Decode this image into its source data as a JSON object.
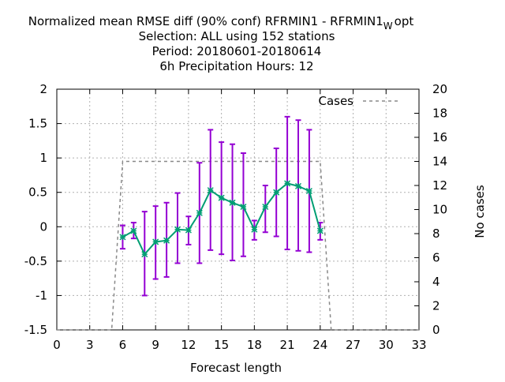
{
  "chart_data": {
    "type": "line",
    "title_lines": [
      "Normalized mean RMSE diff (90% conf) RFRMIN1 - RFRMIN1",
      "Selection: ALL using   152 stations",
      "Period: 20180601-20180614",
      "6h Precipitation   Hours:  12"
    ],
    "title_subscript": "W",
    "title_suffix": "opt",
    "xlabel": "Forecast length",
    "ylabel_right": "No cases",
    "xlim": [
      0,
      33
    ],
    "ylim": [
      -1.5,
      2
    ],
    "y2lim": [
      0,
      20
    ],
    "x_ticks": [
      "0",
      "3",
      "6",
      "9",
      "12",
      "15",
      "18",
      "21",
      "24",
      "27",
      "30",
      "33"
    ],
    "y_ticks": [
      "-1.5",
      "-1",
      "-0.5",
      "0",
      "0.5",
      "1",
      "1.5",
      "2"
    ],
    "y2_ticks": [
      "0",
      "2",
      "4",
      "6",
      "8",
      "10",
      "12",
      "14",
      "16",
      "18",
      "20"
    ],
    "grid": true,
    "legend_position": "top-right",
    "legend_label": "Cases",
    "series": [
      {
        "name": "RMSE diff",
        "color": "#009e73",
        "errorbar_color": "#9400d3",
        "x": [
          6,
          7,
          8,
          9,
          10,
          11,
          12,
          13,
          14,
          15,
          16,
          17,
          18,
          19,
          20,
          21,
          22,
          23,
          24
        ],
        "y": [
          -0.15,
          -0.06,
          -0.4,
          -0.22,
          -0.2,
          -0.04,
          -0.05,
          0.2,
          0.53,
          0.42,
          0.35,
          0.29,
          -0.04,
          0.29,
          0.5,
          0.63,
          0.59,
          0.52,
          -0.06
        ],
        "y_low": [
          -0.32,
          -0.17,
          -1.0,
          -0.76,
          -0.73,
          -0.53,
          -0.26,
          -0.53,
          -0.34,
          -0.4,
          -0.49,
          -0.43,
          -0.19,
          -0.08,
          -0.14,
          -0.33,
          -0.35,
          -0.37,
          -0.19
        ],
        "y_high": [
          0.02,
          0.06,
          0.22,
          0.3,
          0.35,
          0.49,
          0.15,
          0.93,
          1.41,
          1.23,
          1.2,
          1.07,
          0.09,
          0.6,
          1.14,
          1.6,
          1.55,
          1.41,
          0.06
        ]
      },
      {
        "name": "Cases",
        "color": "#888888",
        "dashed": true,
        "axis": "y2",
        "x": [
          0,
          5,
          6,
          24,
          25,
          33
        ],
        "y": [
          0,
          0,
          14,
          14,
          0,
          0
        ]
      }
    ]
  }
}
